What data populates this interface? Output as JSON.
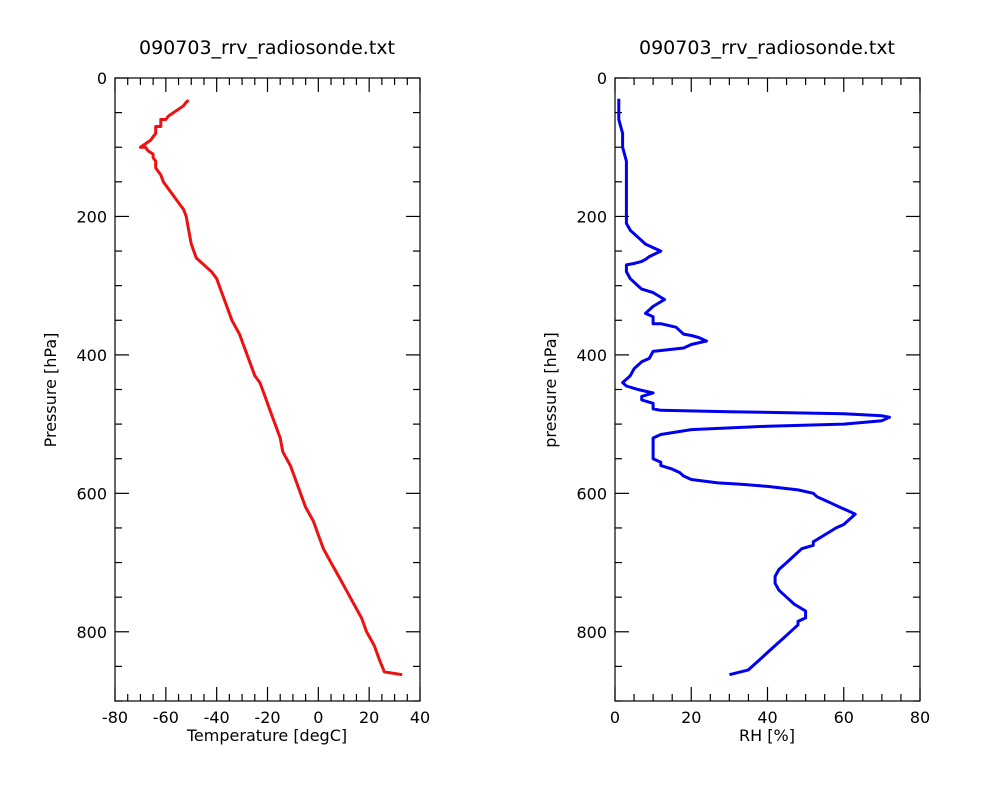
{
  "chart_data": [
    {
      "type": "line",
      "title": "090703_rrv_radiosonde.txt",
      "xlabel": "Temperature [degC]",
      "ylabel": "Pressure [hPa]",
      "xlim": [
        -80,
        40
      ],
      "ylim": [
        900,
        0
      ],
      "y_inverted": true,
      "xticks": [
        -80,
        -60,
        -40,
        -20,
        0,
        20,
        40
      ],
      "yticks": [
        0,
        200,
        400,
        600,
        800
      ],
      "x_minor_step": 5,
      "y_minor_step": 50,
      "grid": false,
      "color": "#ee1111",
      "series": [
        {
          "x": [
            33,
            26,
            24,
            22,
            19,
            17,
            14,
            11,
            8,
            5,
            2,
            0,
            -2,
            -5,
            -7,
            -9,
            -11,
            -14,
            -15,
            -17,
            -19,
            -21,
            -23,
            -25,
            -27,
            -29,
            -31,
            -34,
            -37,
            -39,
            -40,
            -42,
            -45,
            -48,
            -50,
            -51,
            -52,
            -53,
            -55,
            -57,
            -59,
            -61,
            -62,
            -64,
            -64,
            -65,
            -65,
            -67,
            -68,
            -70,
            -66,
            -65,
            -64,
            -64,
            -62,
            -62,
            -60,
            -59,
            -57,
            -55,
            -53,
            -52,
            -51
          ],
          "y": [
            862,
            858,
            840,
            820,
            800,
            780,
            760,
            740,
            720,
            700,
            680,
            660,
            640,
            620,
            600,
            580,
            560,
            540,
            520,
            500,
            480,
            460,
            440,
            430,
            410,
            390,
            370,
            350,
            320,
            300,
            290,
            280,
            270,
            260,
            240,
            220,
            200,
            190,
            180,
            170,
            160,
            150,
            140,
            130,
            120,
            115,
            110,
            105,
            100,
            100,
            90,
            85,
            80,
            70,
            70,
            60,
            60,
            55,
            50,
            45,
            40,
            35,
            32
          ]
        }
      ]
    },
    {
      "type": "line",
      "title": "090703_rrv_radiosonde.txt",
      "xlabel": "RH [%]",
      "ylabel": "pressure [hPa]",
      "xlim": [
        0,
        80
      ],
      "ylim": [
        900,
        0
      ],
      "y_inverted": true,
      "xticks": [
        0,
        20,
        40,
        60,
        80
      ],
      "yticks": [
        0,
        200,
        400,
        600,
        800
      ],
      "x_minor_step": 5,
      "y_minor_step": 50,
      "grid": false,
      "color": "#0000ee",
      "series": [
        {
          "x": [
            30,
            35,
            37,
            38,
            40,
            42,
            44,
            46,
            47,
            48,
            48,
            50,
            50,
            47,
            45,
            43,
            42,
            42,
            43,
            45,
            47,
            49,
            52,
            52,
            55,
            58,
            60,
            61,
            62,
            63,
            61,
            59,
            57,
            55,
            53,
            52,
            48,
            40,
            33,
            27,
            20,
            18,
            17,
            15,
            12,
            12,
            10,
            10,
            12,
            20,
            40,
            60,
            70,
            72,
            70,
            60,
            30,
            12,
            10,
            10,
            7,
            7,
            10,
            6,
            3,
            2,
            4,
            5,
            7,
            9,
            10,
            18,
            20,
            24,
            22,
            20,
            18,
            16,
            12,
            10,
            10,
            8,
            10,
            13,
            10,
            7,
            6,
            5,
            4,
            3,
            3,
            5,
            7,
            8,
            9,
            12,
            10,
            8,
            6,
            4,
            3,
            3,
            3,
            3,
            3,
            3,
            2,
            2,
            1,
            1,
            1,
            1
          ],
          "y": [
            862,
            855,
            845,
            840,
            830,
            820,
            810,
            800,
            795,
            790,
            785,
            780,
            770,
            760,
            750,
            740,
            730,
            720,
            710,
            700,
            690,
            680,
            675,
            670,
            660,
            650,
            645,
            640,
            635,
            630,
            625,
            620,
            615,
            610,
            605,
            600,
            595,
            590,
            587,
            585,
            580,
            575,
            570,
            565,
            560,
            555,
            550,
            520,
            515,
            508,
            503,
            500,
            495,
            490,
            488,
            485,
            482,
            480,
            478,
            470,
            465,
            460,
            455,
            450,
            445,
            440,
            430,
            420,
            410,
            405,
            395,
            390,
            385,
            380,
            375,
            372,
            370,
            360,
            355,
            355,
            345,
            340,
            330,
            320,
            310,
            305,
            300,
            295,
            290,
            280,
            270,
            268,
            265,
            262,
            258,
            250,
            245,
            240,
            230,
            220,
            210,
            200,
            180,
            160,
            140,
            120,
            100,
            80,
            60,
            50,
            40,
            30
          ]
        }
      ]
    }
  ]
}
